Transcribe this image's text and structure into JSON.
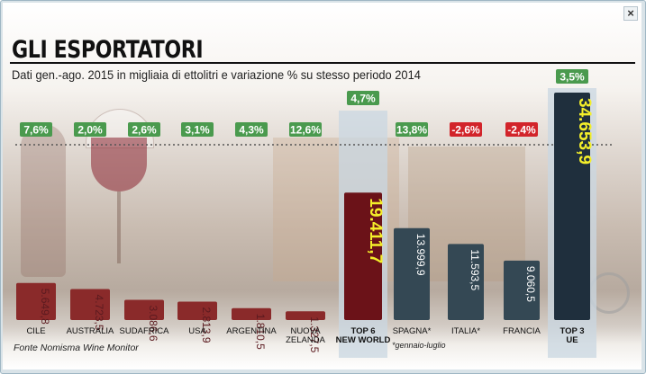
{
  "header": {
    "title": "GLI ESPORTATORI",
    "subtitle": "Dati gen.-ago. 2015 in migliaia di ettolitri e variazione % su stesso periodo 2014",
    "close_label": "×"
  },
  "footer": {
    "source": "Fonte Nomisma Wine Monitor",
    "note": "*gennaio-luglio"
  },
  "colors": {
    "new_world_bar": "#8a2a2a",
    "new_world_total": "#6b1218",
    "ue_bar": "#344854",
    "ue_total": "#1f2f3d",
    "positive_badge": "#4a9a4e",
    "negative_badge": "#d2242a",
    "total_value_text": "#f4ef2a"
  },
  "chart_data": {
    "type": "bar",
    "categories": [
      "CILE",
      "AUSTRALIA",
      "SUDAFRICA",
      "USA",
      "ARGENTINA",
      "NUOVA ZELANDA",
      "TOP 6 NEW WORLD",
      "SPAGNA*",
      "ITALIA*",
      "FRANCIA",
      "TOP 3 UE"
    ],
    "values": [
      5649.8,
      4723.5,
      3086.6,
      2813.9,
      1810.5,
      1327.5,
      19411.7,
      13999.9,
      11593.5,
      9060.5,
      34653.9
    ],
    "value_labels": [
      "5.649,8",
      "4.723,5",
      "3.086,6",
      "2.813,9",
      "1.810,5",
      "1.327,5",
      "19.411,7",
      "13.999,9",
      "11.593,5",
      "9.060,5",
      "34.653,9"
    ],
    "variations": [
      "7,6%",
      "2,0%",
      "2,6%",
      "3,1%",
      "4,3%",
      "12,6%",
      "4,7%",
      "13,8%",
      "-2,6%",
      "-2,4%",
      "3,5%"
    ],
    "variation_sign": [
      "+",
      "+",
      "+",
      "+",
      "+",
      "+",
      "+",
      "+",
      "-",
      "-",
      "+"
    ],
    "groups": [
      "new_world",
      "new_world",
      "new_world",
      "new_world",
      "new_world",
      "new_world",
      "new_world_total",
      "ue",
      "ue",
      "ue",
      "ue_total"
    ],
    "title": "GLI ESPORTATORI",
    "xlabel": "",
    "ylabel": "",
    "grid": false,
    "legend": "none"
  }
}
